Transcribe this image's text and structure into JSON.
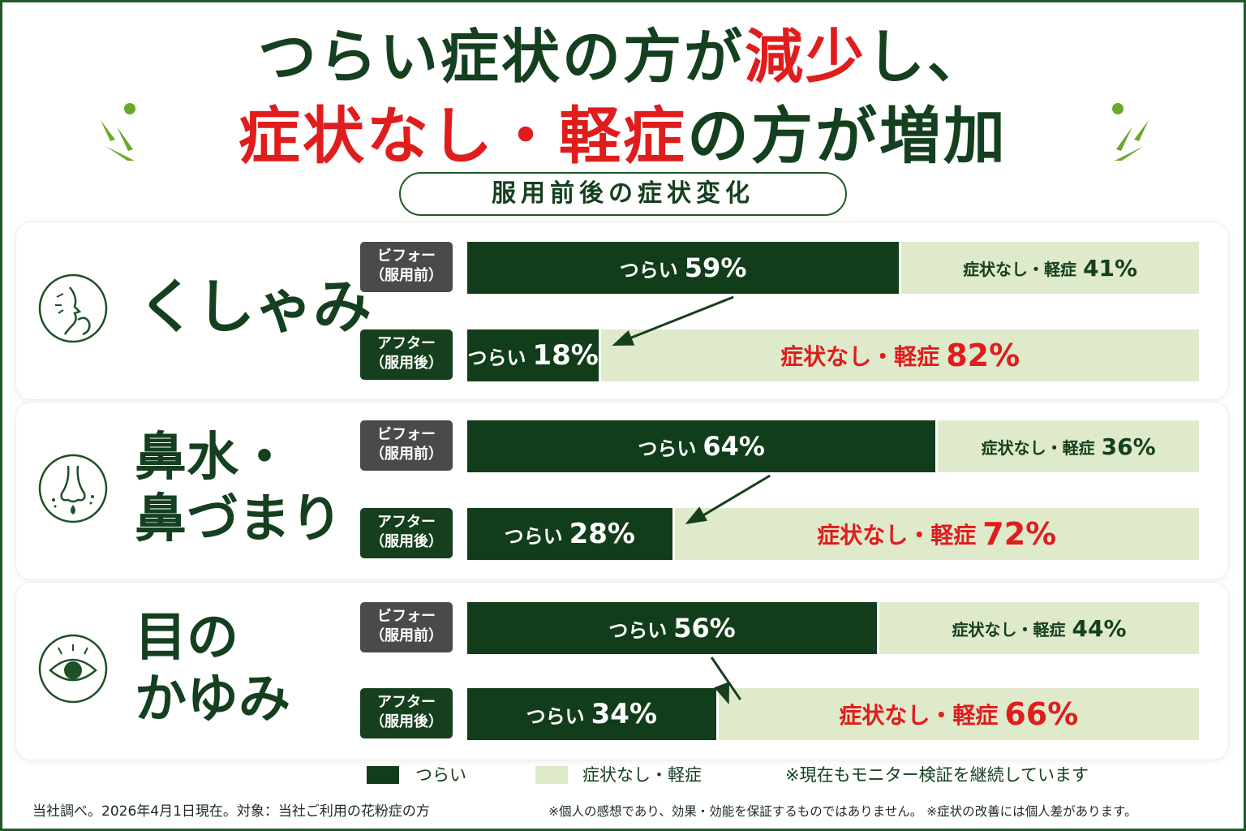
{
  "title": {
    "line1_a": "つらい症状の方が",
    "line1_b": "減少",
    "line1_c": "し、",
    "line2_a": "症状なし・軽症",
    "line2_b": "の方が増加"
  },
  "subtitle": "服用前後の症状変化",
  "badges": {
    "before_line1": "ビフォー",
    "before_line2": "（服用前）",
    "after_line1": "アフター",
    "after_line2": "（服用後）"
  },
  "segment_labels": {
    "severe": "つらい",
    "mild": "症状なし・軽症"
  },
  "legend": {
    "severe": "つらい",
    "mild": "症状なし・軽症",
    "note": "※現在もモニター検証を継続しています"
  },
  "footnotes": {
    "left": "当社調べ。2026年4月1日現在。対象：当社ご利用の花粉症の方",
    "right": "※個人の感想であり、効果・効能を保証するものではありません。 ※症状の改善には個人差があります。"
  },
  "colors": {
    "severe": "#123d1a",
    "mild": "#dfeacb",
    "accent_red": "#df1d1d",
    "brand_green": "#15401f"
  },
  "icons": [
    "sneeze-icon",
    "nose-icon",
    "eye-icon",
    "sparkle-icon"
  ],
  "chart_data": {
    "type": "bar",
    "stacked": true,
    "unit": "%",
    "categories": [
      {
        "name_line1": "くしゃみ",
        "name_line2": "",
        "icon": "sneeze-icon",
        "before": {
          "severe": 59,
          "mild": 41
        },
        "after": {
          "severe": 18,
          "mild": 82
        }
      },
      {
        "name_line1": "鼻水・",
        "name_line2": "鼻づまり",
        "icon": "nose-icon",
        "before": {
          "severe": 64,
          "mild": 36
        },
        "after": {
          "severe": 28,
          "mild": 72
        }
      },
      {
        "name_line1": "目の",
        "name_line2": "かゆみ",
        "icon": "eye-icon",
        "before": {
          "severe": 56,
          "mild": 44
        },
        "after": {
          "severe": 34,
          "mild": 66
        }
      }
    ],
    "series": [
      {
        "name": "つらい",
        "color": "#123d1a"
      },
      {
        "name": "症状なし・軽症",
        "color": "#dfeacb"
      }
    ],
    "xlim": [
      0,
      100
    ]
  }
}
